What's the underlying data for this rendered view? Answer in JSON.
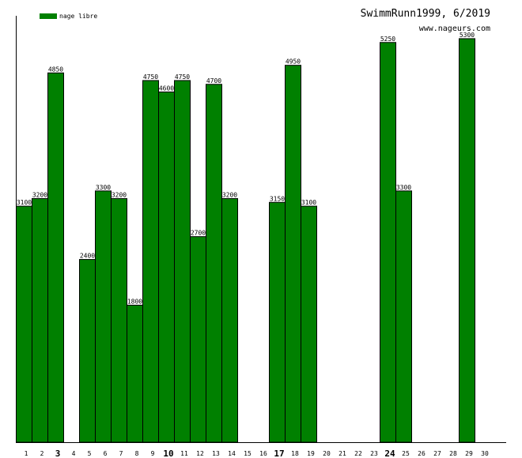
{
  "header": {
    "title": "SwimmRunn1999, 6/2019",
    "site": "www.nageurs.com"
  },
  "legend": {
    "label": "nage libre",
    "color": "#008000"
  },
  "chart_data": {
    "type": "bar",
    "categories": [
      "1",
      "2",
      "3",
      "4",
      "5",
      "6",
      "7",
      "8",
      "9",
      "10",
      "11",
      "12",
      "13",
      "14",
      "15",
      "16",
      "17",
      "18",
      "19",
      "20",
      "21",
      "22",
      "23",
      "24",
      "25",
      "26",
      "27",
      "28",
      "29",
      "30"
    ],
    "bold_categories": [
      "3",
      "10",
      "17",
      "24"
    ],
    "series": [
      {
        "name": "nage libre",
        "color": "#008000",
        "values": [
          3100,
          3200,
          4850,
          null,
          2400,
          3300,
          3200,
          1800,
          4750,
          4600,
          4750,
          2700,
          4700,
          3200,
          null,
          null,
          3150,
          4950,
          3100,
          null,
          null,
          null,
          null,
          5250,
          3300,
          null,
          null,
          null,
          5300,
          null
        ]
      }
    ],
    "ylim": [
      0,
      5600
    ],
    "grid": false,
    "legend_position": "top-left"
  }
}
